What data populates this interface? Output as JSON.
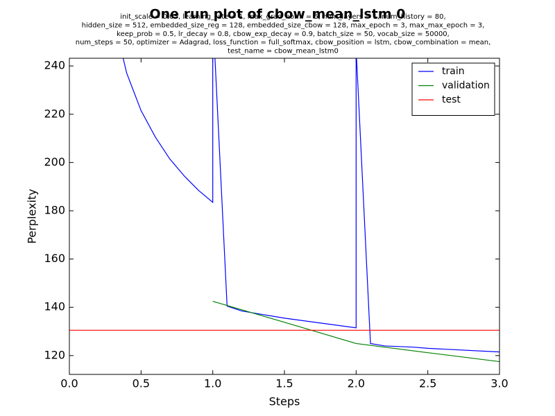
{
  "chart_data": {
    "type": "line",
    "title": "One run plot of cbow_mean_lstm 0",
    "subtitle": [
      "init_scale = 0.05, learning_rate = 1, max_grad_norm = 5, num_layers = 1, num_history = 80,",
      "hidden_size = 512, embedded_size_reg = 128, embedded_size_cbow = 128, max_epoch = 3, max_max_epoch = 3,",
      "keep_prob = 0.5, lr_decay = 0.8, cbow_exp_decay = 0.9, batch_size = 50, vocab_size = 50000,",
      "num_steps = 50, optimizer = Adagrad, loss_function = full_softmax, cbow_position = lstm, cbow_combination = mean,",
      "test_name = cbow_mean_lstm0"
    ],
    "x_label": "Steps",
    "y_label": "Perplexity",
    "series": [
      {
        "name": "train",
        "color": "#0000ff",
        "x": [
          0.3,
          0.4,
          0.5,
          0.6,
          0.7,
          0.8,
          0.9,
          1.0,
          1.0,
          1.1,
          1.2,
          1.5,
          2.0,
          2.0,
          2.1,
          2.2,
          2.4,
          2.5,
          3.0
        ],
        "values": [
          262,
          237,
          221.5,
          210.5,
          201.5,
          194.5,
          188.5,
          183.5,
          262,
          140.5,
          138.5,
          135.5,
          131.5,
          247,
          125,
          124,
          123.5,
          123,
          121.5
        ]
      },
      {
        "name": "validation",
        "color": "#008000",
        "x": [
          1.0,
          1.5,
          2.0,
          2.5,
          3.0
        ],
        "values": [
          142.5,
          133.8,
          125,
          121.2,
          117.5
        ]
      },
      {
        "name": "test",
        "color": "#ff0000",
        "x": [
          0.0,
          3.0
        ],
        "values": [
          130.5,
          130.5
        ]
      }
    ],
    "xlim": [
      0.0,
      3.0
    ],
    "xticks": [
      {
        "value": 0,
        "label": "0.0"
      },
      {
        "value": 0.5,
        "label": "0.5"
      },
      {
        "value": 1,
        "label": "1.0"
      },
      {
        "value": 1.5,
        "label": "1.5"
      },
      {
        "value": 2,
        "label": "2.0"
      },
      {
        "value": 2.5,
        "label": "2.5"
      },
      {
        "value": 3,
        "label": "3.0"
      }
    ],
    "ylim": [
      112.2,
      243.2
    ],
    "yticks": [
      120,
      140,
      160,
      180,
      200,
      220,
      240
    ],
    "legend": "upper right",
    "grid": false
  }
}
